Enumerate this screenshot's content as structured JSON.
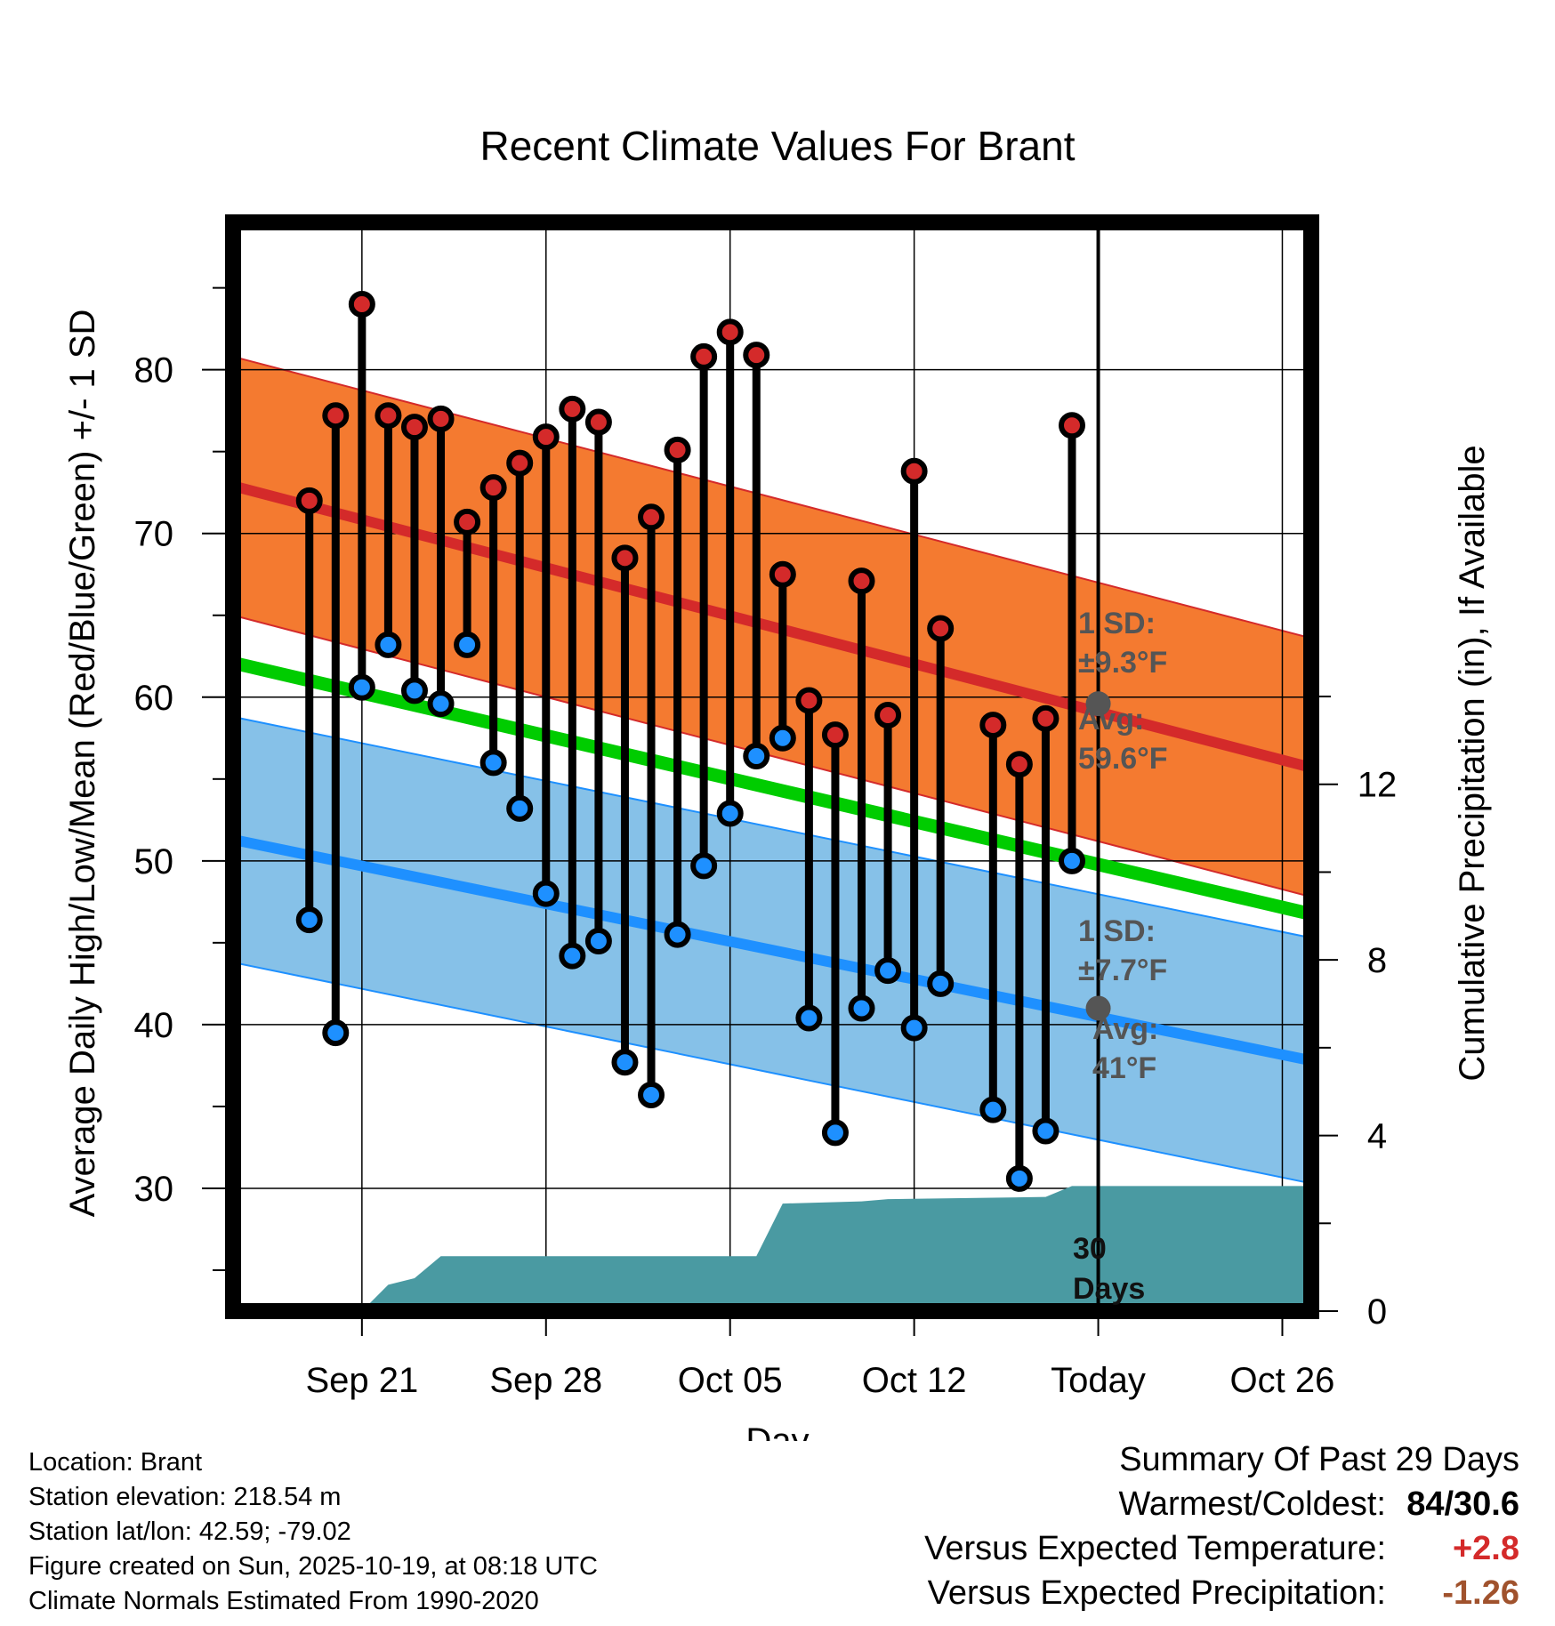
{
  "chart_data": {
    "type": "line",
    "title": "Recent Climate Values For Brant",
    "xlabel": "Day",
    "ylabel": "Average Daily High/Low/Mean (Red/Blue/Green) +/- 1 SD",
    "y2label": "Cumulative Precipitation (in), If Available",
    "ylim": [
      22.5,
      89
    ],
    "y2lim": [
      0,
      24.8
    ],
    "xlim": [
      -4.9,
      36.1
    ],
    "yticks": [
      30,
      40,
      50,
      60,
      70,
      80
    ],
    "y2ticks": [
      0,
      4,
      8,
      12
    ],
    "xticks": [
      {
        "day": 0,
        "label": "Sep 21"
      },
      {
        "day": 7,
        "label": "Sep 28"
      },
      {
        "day": 14,
        "label": "Oct 05"
      },
      {
        "day": 21,
        "label": "Oct 12"
      },
      {
        "day": 28,
        "label": "Today"
      },
      {
        "day": 35,
        "label": "Oct 26"
      }
    ],
    "today_day": 28,
    "days": [
      -2,
      -1,
      0,
      1,
      2,
      3,
      4,
      5,
      6,
      7,
      8,
      9,
      10,
      11,
      12,
      13,
      14,
      15,
      16,
      17,
      18,
      19,
      20,
      21,
      22,
      24,
      25,
      26,
      27
    ],
    "highs": [
      72,
      77.2,
      84,
      77.2,
      76.5,
      77,
      70.7,
      72.8,
      74.3,
      75.9,
      77.6,
      76.8,
      68.5,
      71,
      75.1,
      80.8,
      82.3,
      80.9,
      67.5,
      59.8,
      57.7,
      67.1,
      58.9,
      73.8,
      64.2,
      58.3,
      55.9,
      58.7,
      76.6
    ],
    "lows": [
      46.4,
      39.5,
      60.6,
      63.2,
      60.4,
      59.6,
      63.2,
      56,
      53.2,
      48,
      44.2,
      45.1,
      37.7,
      35.7,
      45.5,
      49.7,
      52.9,
      56.4,
      57.5,
      40.4,
      33.4,
      41,
      43.3,
      39.8,
      42.5,
      34.8,
      30.6,
      33.5,
      50
    ],
    "normal_high": {
      "start": 72.9,
      "end": 55.7
    },
    "normal_low": {
      "start": 51.3,
      "end": 37.8
    },
    "normal_mean": {
      "start": 62.1,
      "end": 46.75
    },
    "high_sd": 7.9,
    "low_sd": 7.5,
    "precip_cumulative": [
      [
        -4.9,
        0
      ],
      [
        0,
        0
      ],
      [
        1,
        0.6
      ],
      [
        2,
        0.75
      ],
      [
        3,
        1.25
      ],
      [
        15,
        1.25
      ],
      [
        16,
        2.45
      ],
      [
        19,
        2.5
      ],
      [
        20,
        2.55
      ],
      [
        26,
        2.6
      ],
      [
        27,
        2.85
      ],
      [
        36.1,
        2.85
      ]
    ],
    "annotations": {
      "high_sd": "1 SD:",
      "high_sd_value": "±9.3°F",
      "high_avg": "Avg:",
      "high_avg_value": "59.6°F",
      "high_avg_temp": 59.6,
      "low_sd": "1 SD:",
      "low_sd_value": "±7.7°F",
      "low_avg": "Avg:",
      "low_avg_value": "41°F",
      "low_avg_temp": 41,
      "window": "30",
      "window_unit": "Days"
    },
    "colors": {
      "high_band": "#f47a30",
      "high_line": "#d42a2a",
      "low_band": "#86c1e8",
      "low_line": "#1e90ff",
      "mean_line": "#00cc00",
      "precip": "#4a9aa2",
      "high_dot": "#d42a2a",
      "low_dot": "#1e90ff",
      "avg_dot": "#555555"
    }
  },
  "footer": {
    "location": "Location: Brant",
    "elevation": "Station elevation: 218.54 m",
    "latlon": "Station lat/lon: 42.59; -79.02",
    "created": "Figure created on Sun, 2025-10-19, at 08:18 UTC",
    "normals": "Climate Normals Estimated From 1990-2020"
  },
  "summary": {
    "heading": "Summary Of Past 29 Days",
    "warmest_label": "Warmest/Coldest:",
    "warmest_value": "84/30.6",
    "temp_label": "Versus Expected Temperature:",
    "temp_value": "+2.8",
    "temp_color": "#d42a2a",
    "precip_label": "Versus Expected Precipitation:",
    "precip_value": "-1.26",
    "precip_color": "#a0522d"
  }
}
